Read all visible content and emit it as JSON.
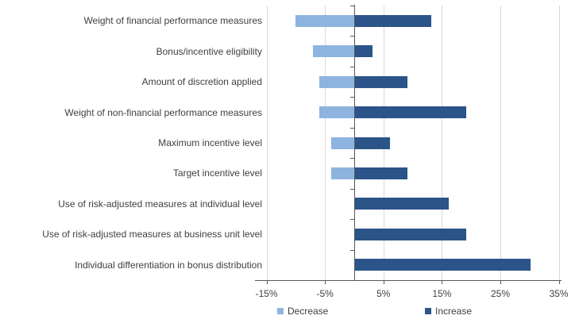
{
  "chart_data": {
    "type": "bar",
    "variant": "horizontal-diverging-clustered",
    "title": "",
    "categories": [
      "Weight of financial performance measures",
      "Bonus/incentive eligibility",
      "Amount of discretion applied",
      "Weight of non-financial performance measures",
      "Maximum incentive level",
      "Target incentive level",
      "Use of risk-adjusted measures at individual level",
      "Use of risk-adjusted measures at business unit level",
      "Individual differentiation in bonus distribution"
    ],
    "series": [
      {
        "name": "Decrease",
        "color": "#8FB3DF",
        "values": [
          -10,
          -7,
          -6,
          -6,
          -4,
          -4,
          0,
          0,
          0
        ]
      },
      {
        "name": "Increase",
        "color": "#2B5488",
        "values": [
          13,
          3,
          9,
          19,
          6,
          9,
          16,
          19,
          30
        ]
      }
    ],
    "unit": "%",
    "x_ticks": [
      -15,
      -5,
      5,
      15,
      25,
      35
    ],
    "x_tick_labels": [
      "-15%",
      "-5%",
      "5%",
      "15%",
      "25%",
      "35%"
    ],
    "xlim": [
      -17,
      35.5
    ],
    "grid": "vertical",
    "legend_position": "bottom"
  },
  "colors": {
    "decrease": "#8FB3DF",
    "increase": "#2B5488",
    "gridline": "#D9D9D9",
    "axis_line": "#595959",
    "text": "#3F3F3F",
    "background": "#FFFFFF"
  }
}
